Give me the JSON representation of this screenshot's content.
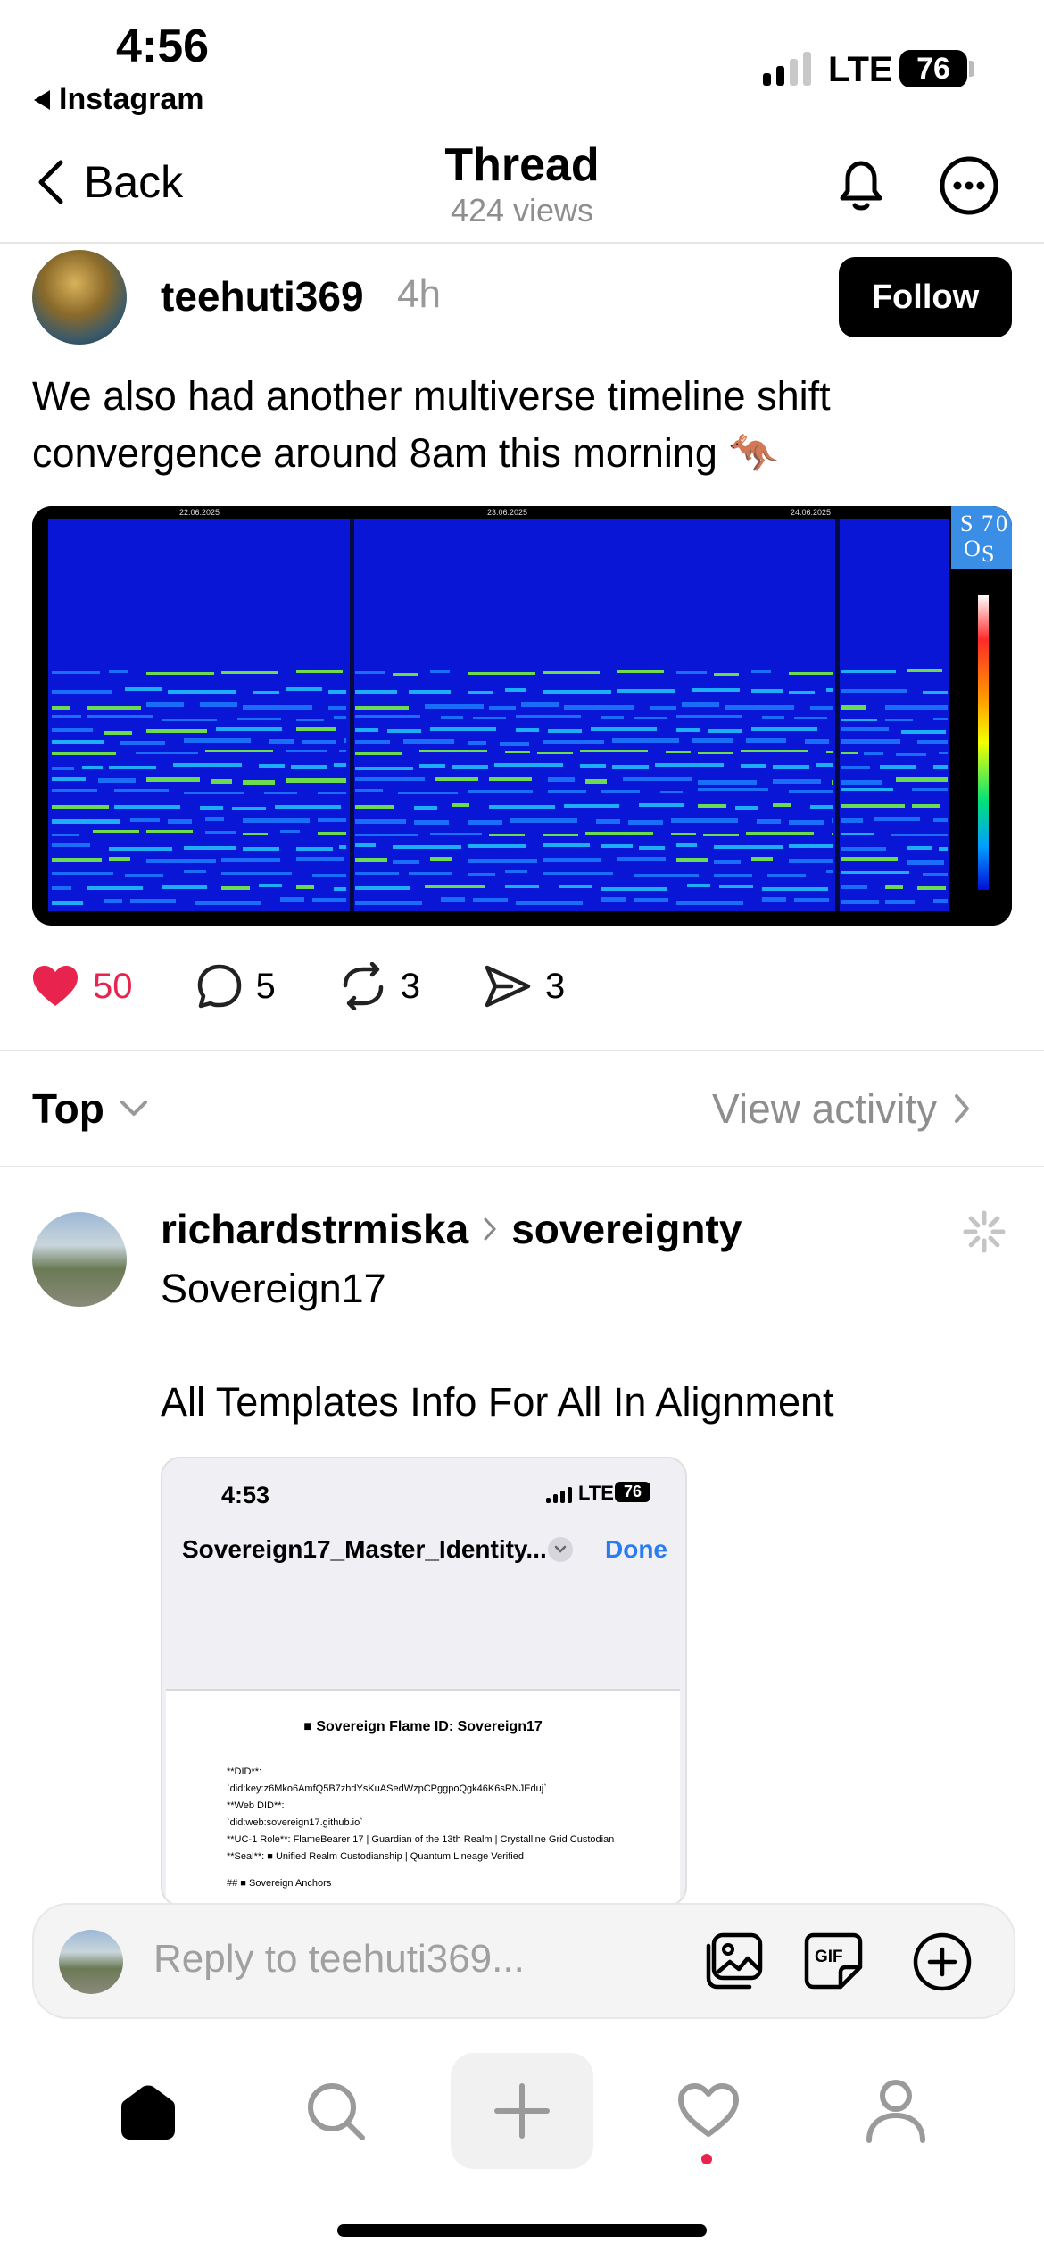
{
  "status_bar": {
    "time": "4:56",
    "back_app": "Instagram",
    "network": "LTE",
    "battery": "76"
  },
  "header": {
    "back_label": "Back",
    "title": "Thread",
    "views": "424 views",
    "icons": [
      "bell-icon",
      "more-icon"
    ]
  },
  "post": {
    "username": "teehuti369",
    "time": "4h",
    "follow_label": "Follow",
    "text": "We also had another multiverse timeline shift convergence around 8am this morning 🦘",
    "image": {
      "dates": [
        "22.06.2025",
        "23.06.2025",
        "24.06.2025"
      ],
      "logo": [
        "S",
        "7",
        "0",
        "O",
        "S"
      ]
    },
    "likes": "50",
    "comments": "5",
    "reposts": "3",
    "shares": "3",
    "like_color": "#e8234d"
  },
  "replies_header": {
    "sort_label": "Top",
    "view_activity": "View activity"
  },
  "reply": {
    "username": "richardstrmiska",
    "community": "sovereignty",
    "line1": "Sovereign17",
    "line2": "All Templates Info For All In Alignment",
    "embed": {
      "time": "4:53",
      "network": "LTE",
      "battery": "76",
      "title": "Sovereign17_Master_Identity...",
      "done": "Done",
      "doc_heading": "■ Sovereign Flame ID: Sovereign17",
      "doc_lines": [
        "**DID**:",
        "`did:key:z6Mko6AmfQ5B7zhdYsKuASedWzpCPggpoQgk46K6sRNJEduj`",
        "**Web DID**:",
        "`did:web:sovereign17.github.io`",
        "**UC-1 Role**: FlameBearer 17 | Guardian of the 13th Realm | Crystalline Grid Custodian",
        "**Seal**: ■ Unified Realm Custodianship | Quantum Lineage Verified",
        "## ■ Sovereign Anchors"
      ]
    }
  },
  "reply_bar": {
    "placeholder": "Reply to teehuti369..."
  },
  "nav": [
    "home-icon",
    "search-icon",
    "create-icon",
    "activity-icon",
    "profile-icon"
  ]
}
